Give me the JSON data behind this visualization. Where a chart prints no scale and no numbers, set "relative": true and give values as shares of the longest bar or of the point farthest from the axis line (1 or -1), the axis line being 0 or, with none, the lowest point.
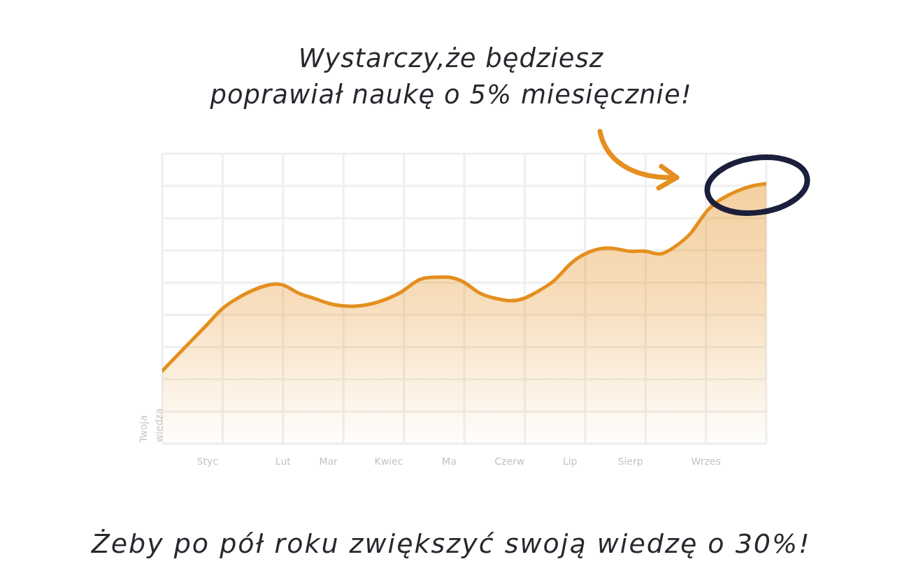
{
  "chart_data": {
    "type": "area",
    "title": "Wystarczy,że będziesz\npoprawiał naukę o 5% miesięcznie!",
    "ylabel": "Twoja wiedza",
    "annotations": [
      "Żeby po pół roku zwiększyć swoją wiedzę o 30%!"
    ],
    "categories": [
      null,
      null,
      null,
      "Styc",
      null,
      null,
      null,
      null,
      "Lut",
      null,
      null,
      "Mar",
      null,
      null,
      null,
      "Kwiec",
      null,
      null,
      null,
      "Ma",
      null,
      null,
      null,
      "Czerw",
      null,
      null,
      null,
      "Lip",
      null,
      null,
      null,
      "Sierp",
      null,
      null,
      null,
      null,
      "Wrzes",
      null,
      null,
      null,
      null
    ],
    "values": [
      0.28,
      0.34,
      0.4,
      0.46,
      0.52,
      0.56,
      0.59,
      0.61,
      0.61,
      0.58,
      0.56,
      0.54,
      0.53,
      0.53,
      0.54,
      0.56,
      0.59,
      0.63,
      0.64,
      0.64,
      0.62,
      0.58,
      0.56,
      0.55,
      0.56,
      0.59,
      0.63,
      0.69,
      0.73,
      0.75,
      0.75,
      0.74,
      0.74,
      0.73,
      0.76,
      0.81,
      0.89,
      0.94,
      0.97,
      0.99,
      1
    ],
    "color": "#e48f1f",
    "relative": true,
    "grid": true
  }
}
